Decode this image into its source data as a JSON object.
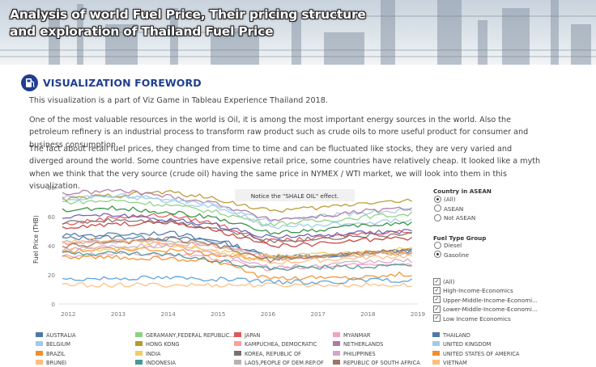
{
  "header": {
    "title_line1": "Analysis of world Fuel Price, Their pricing structure",
    "title_line2": "and exploration of Thailand Fuel Price"
  },
  "foreword": {
    "icon": "fuel-pump-icon",
    "heading": "VISUALIZATION FOREWORD",
    "paragraphs": [
      "This visualization is a part of Viz Game in Tableau Experience Thailand 2018.",
      "One of the most valuable resources in the world is Oil, it is among the most important energy sources in the world. Also the petroleum refinery is an industrial process to transform raw product such as crude oils to more useful product for consumer and business consumption.",
      "The fact about retail fuel prices, they changed from time to time and can be fluctuated like stocks, they are very varied and diverged around the world. Some countries have expensive retail price, some countries have relatively cheap. It looked like a myth when we think that the very source (crude oil) having the same price in NYMEX / WTI market, we will look into them in this visualization."
    ]
  },
  "filters": {
    "country_title": "Country in ASEAN",
    "country_options": [
      {
        "label": "(All)",
        "selected": true
      },
      {
        "label": "ASEAN",
        "selected": false
      },
      {
        "label": "Not ASEAN",
        "selected": false
      }
    ],
    "fuel_title": "Fuel Type Group",
    "fuel_options": [
      {
        "label": "Diesel",
        "selected": false
      },
      {
        "label": "Gasoline",
        "selected": true
      }
    ],
    "income_options": [
      {
        "label": "(All)",
        "checked": true
      },
      {
        "label": "High-Income-Economics",
        "checked": true
      },
      {
        "label": "Upper-Middle-Income-Economi...",
        "checked": true
      },
      {
        "label": "Lower-Middle-Income-Economi...",
        "checked": true
      },
      {
        "label": "Low Income Economics",
        "checked": true
      }
    ]
  },
  "legend": [
    {
      "label": "AUSTRALIA",
      "color": "#4e79a7"
    },
    {
      "label": "GERAMANY,FEDERAL REPUBLIC...",
      "color": "#8cd17d"
    },
    {
      "label": "JAPAN",
      "color": "#e15759"
    },
    {
      "label": "MYANMAR",
      "color": "#f1a2c0"
    },
    {
      "label": "THAILAND",
      "color": "#4e79a7"
    },
    {
      "label": "BELGIUM",
      "color": "#a0cbe8"
    },
    {
      "label": "HONG KONG",
      "color": "#b6992d"
    },
    {
      "label": "KAMPUCHEA, DEMOCRATIC",
      "color": "#ff9d9a"
    },
    {
      "label": "NETHERLANDS",
      "color": "#b07aa1"
    },
    {
      "label": "UNITED KINGDOM",
      "color": "#a0cbe8"
    },
    {
      "label": "BRAZIL",
      "color": "#f28e2b"
    },
    {
      "label": "INDIA",
      "color": "#f1ce63"
    },
    {
      "label": "KOREA, REPUBLIC OF",
      "color": "#79706e"
    },
    {
      "label": "PHILIPPINES",
      "color": "#d4a6c8"
    },
    {
      "label": "UNITED STATES OF AMERICA",
      "color": "#f28e2b"
    },
    {
      "label": "BRUNEI",
      "color": "#ffbe7d"
    },
    {
      "label": "INDONESIA",
      "color": "#499894"
    },
    {
      "label": "LAOS,PEOPLE OF DEM.REP.OF",
      "color": "#bab0ac"
    },
    {
      "label": "REPUBLIC OF SOUTH AFRICA",
      "color": "#9d7660"
    },
    {
      "label": "VIETNAM",
      "color": "#ffbe7d"
    }
  ],
  "chart_data": {
    "type": "line",
    "title": "",
    "xlabel": "",
    "ylabel": "Fuel Price (THB)",
    "annotation": "Notice the \"SHALE OIL\" effect.",
    "x": [
      "2012",
      "2013",
      "2014",
      "2015",
      "2016",
      "2017",
      "2018",
      "2019"
    ],
    "x_ticks": [
      "2012",
      "2013",
      "2014",
      "2015",
      "2016",
      "2017",
      "2018",
      "2019"
    ],
    "y_ticks": [
      0,
      20,
      40,
      60,
      80
    ],
    "ylim": [
      0,
      80
    ],
    "xlim": [
      2011.8,
      2019
    ],
    "grid": false,
    "series": [
      {
        "name": "AUSTRALIA",
        "color": "#4e79a7",
        "values": [
          45,
          46,
          45,
          44,
          33,
          32,
          35,
          37
        ]
      },
      {
        "name": "GERAMANY,FEDERAL REPUBLIC...",
        "color": "#8cd17d",
        "values": [
          70,
          71,
          68,
          63,
          55,
          57,
          60,
          62
        ]
      },
      {
        "name": "JAPAN",
        "color": "#e15759",
        "values": [
          55,
          60,
          61,
          55,
          43,
          45,
          49,
          50
        ]
      },
      {
        "name": "MYANMAR",
        "color": "#f1a2c0",
        "values": [
          33,
          35,
          34,
          31,
          24,
          25,
          27,
          28
        ]
      },
      {
        "name": "THAILAND",
        "color": "#4e79a7",
        "values": [
          47,
          48,
          49,
          43,
          32,
          33,
          35,
          37
        ]
      },
      {
        "name": "BELGIUM",
        "color": "#a0cbe8",
        "values": [
          73,
          74,
          71,
          66,
          57,
          60,
          63,
          65
        ]
      },
      {
        "name": "HONG KONG",
        "color": "#b6992d",
        "values": [
          72,
          75,
          77,
          72,
          64,
          66,
          70,
          71
        ]
      },
      {
        "name": "KAMPUCHEA, DEMOCRATIC",
        "color": "#ff9d9a",
        "values": [
          42,
          43,
          42,
          40,
          32,
          33,
          35,
          36
        ]
      },
      {
        "name": "NETHERLANDS",
        "color": "#b07aa1",
        "values": [
          76,
          78,
          74,
          69,
          58,
          60,
          64,
          66
        ]
      },
      {
        "name": "UNITED KINGDOM",
        "color": "#a0cbe8",
        "values": [
          72,
          75,
          72,
          68,
          53,
          54,
          56,
          58
        ]
      },
      {
        "name": "BRAZIL",
        "color": "#f28e2b",
        "values": [
          36,
          38,
          37,
          34,
          31,
          33,
          35,
          34
        ]
      },
      {
        "name": "INDIA",
        "color": "#f1ce63",
        "values": [
          37,
          38,
          40,
          36,
          33,
          34,
          36,
          38
        ]
      },
      {
        "name": "KOREA, REPUBLIC OF",
        "color": "#79706e",
        "values": [
          56,
          58,
          57,
          52,
          43,
          45,
          47,
          48
        ]
      },
      {
        "name": "PHILIPPINES",
        "color": "#d4a6c8",
        "values": [
          38,
          40,
          40,
          35,
          25,
          26,
          29,
          30
        ]
      },
      {
        "name": "UNITED STATES OF AMERICA",
        "color": "#f28e2b",
        "values": [
          32,
          32,
          31,
          29,
          17,
          18,
          19,
          21
        ]
      },
      {
        "name": "BRUNEI",
        "color": "#ffbe7d",
        "values": [
          13,
          13,
          13,
          13,
          13,
          13,
          13,
          13
        ]
      },
      {
        "name": "INDONESIA",
        "color": "#499894",
        "values": [
          35,
          35,
          34,
          30,
          24,
          25,
          26,
          27
        ]
      },
      {
        "name": "LAOS,PEOPLE OF DEM.REP.OF",
        "color": "#bab0ac",
        "values": [
          42,
          43,
          44,
          40,
          31,
          32,
          34,
          35
        ]
      },
      {
        "name": "REPUBLIC OF SOUTH AFRICA",
        "color": "#9d7660",
        "values": [
          40,
          42,
          45,
          40,
          30,
          33,
          35,
          38
        ]
      },
      {
        "name": "VIETNAM",
        "color": "#ffbe7d",
        "values": [
          43,
          44,
          42,
          36,
          28,
          30,
          32,
          33
        ]
      },
      {
        "name": "",
        "color": "#6b5fb5",
        "values": [
          60,
          61,
          58,
          54,
          46,
          47,
          49,
          50
        ]
      },
      {
        "name": "",
        "color": "#2f8f3f",
        "values": [
          64,
          66,
          63,
          59,
          49,
          51,
          54,
          56
        ]
      },
      {
        "name": "",
        "color": "#c44040",
        "values": [
          52,
          55,
          56,
          50,
          40,
          41,
          44,
          45
        ]
      },
      {
        "name": "",
        "color": "#5aa0d8",
        "values": [
          17,
          18,
          18,
          17,
          15,
          15,
          16,
          16
        ]
      }
    ]
  }
}
